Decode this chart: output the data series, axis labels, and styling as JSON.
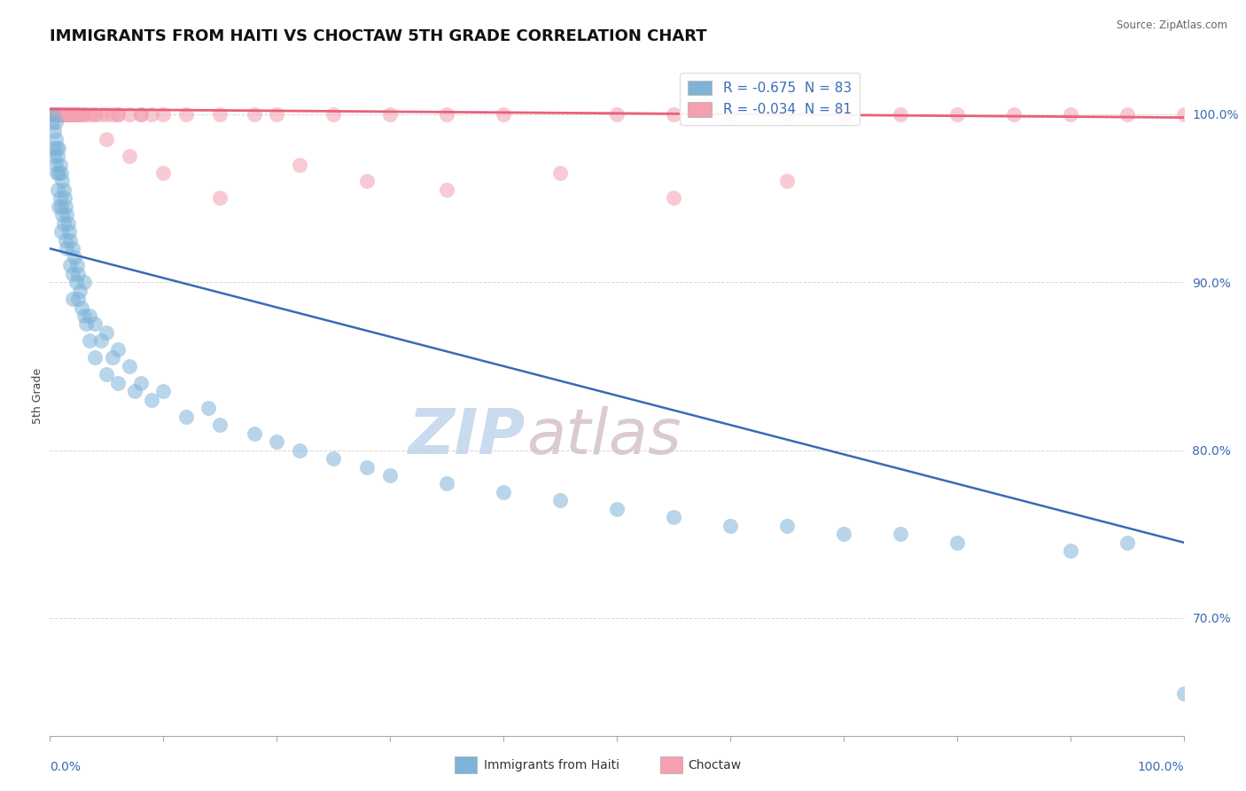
{
  "title": "IMMIGRANTS FROM HAITI VS CHOCTAW 5TH GRADE CORRELATION CHART",
  "source_text": "Source: ZipAtlas.com",
  "ylabel": "5th Grade",
  "x_label_bottom_left": "0.0%",
  "x_label_bottom_right": "100.0%",
  "legend_choctaw_label": "Choctaw",
  "legend_haiti_label": "Immigrants from Haiti",
  "r_haiti": -0.675,
  "n_haiti": 83,
  "r_choctaw": -0.034,
  "n_choctaw": 81,
  "xlim": [
    0.0,
    100.0
  ],
  "ylim": [
    63.0,
    103.5
  ],
  "y_ticks": [
    70.0,
    80.0,
    90.0,
    100.0
  ],
  "y_tick_labels": [
    "70.0%",
    "80.0%",
    "90.0%",
    "100.0%"
  ],
  "blue_color": "#7EB3D8",
  "pink_color": "#F4A0B0",
  "blue_line_color": "#3A6BB5",
  "pink_line_color": "#E8607A",
  "watermark_zip": "ZIP",
  "watermark_atlas": "atlas",
  "watermark_color_zip": "#C5D8EE",
  "watermark_color_atlas": "#D8C5CE",
  "background_color": "#FFFFFF",
  "title_fontsize": 13,
  "axis_label_fontsize": 9,
  "tick_label_fontsize": 10,
  "haiti_line_x0": 0,
  "haiti_line_y0": 92.0,
  "haiti_line_x1": 100,
  "haiti_line_y1": 74.5,
  "choctaw_line_x0": 0,
  "choctaw_line_y0": 100.3,
  "choctaw_line_x1": 100,
  "choctaw_line_y1": 99.8,
  "haiti_scatter_x": [
    0.2,
    0.3,
    0.3,
    0.4,
    0.4,
    0.5,
    0.5,
    0.5,
    0.6,
    0.6,
    0.7,
    0.7,
    0.8,
    0.8,
    0.8,
    0.9,
    0.9,
    1.0,
    1.0,
    1.0,
    1.1,
    1.1,
    1.2,
    1.2,
    1.3,
    1.4,
    1.4,
    1.5,
    1.5,
    1.6,
    1.7,
    1.8,
    1.8,
    2.0,
    2.0,
    2.0,
    2.2,
    2.3,
    2.4,
    2.5,
    2.5,
    2.6,
    2.8,
    3.0,
    3.0,
    3.2,
    3.5,
    3.5,
    4.0,
    4.0,
    4.5,
    5.0,
    5.0,
    5.5,
    6.0,
    6.0,
    7.0,
    7.5,
    8.0,
    9.0,
    10.0,
    12.0,
    14.0,
    15.0,
    18.0,
    20.0,
    22.0,
    25.0,
    28.0,
    30.0,
    35.0,
    40.0,
    45.0,
    50.0,
    55.0,
    60.0,
    65.0,
    70.0,
    75.0,
    80.0,
    90.0,
    95.0,
    100.0
  ],
  "haiti_scatter_y": [
    99.5,
    100.0,
    98.0,
    99.0,
    97.5,
    98.5,
    97.0,
    99.5,
    98.0,
    96.5,
    97.5,
    95.5,
    98.0,
    96.5,
    94.5,
    97.0,
    95.0,
    96.5,
    94.5,
    93.0,
    96.0,
    94.0,
    95.5,
    93.5,
    95.0,
    94.5,
    92.5,
    94.0,
    92.0,
    93.5,
    93.0,
    92.5,
    91.0,
    92.0,
    90.5,
    89.0,
    91.5,
    90.0,
    91.0,
    90.5,
    89.0,
    89.5,
    88.5,
    90.0,
    88.0,
    87.5,
    88.0,
    86.5,
    87.5,
    85.5,
    86.5,
    87.0,
    84.5,
    85.5,
    86.0,
    84.0,
    85.0,
    83.5,
    84.0,
    83.0,
    83.5,
    82.0,
    82.5,
    81.5,
    81.0,
    80.5,
    80.0,
    79.5,
    79.0,
    78.5,
    78.0,
    77.5,
    77.0,
    76.5,
    76.0,
    75.5,
    75.5,
    75.0,
    75.0,
    74.5,
    74.0,
    74.5,
    65.5
  ],
  "choctaw_scatter_x": [
    0.1,
    0.2,
    0.3,
    0.3,
    0.4,
    0.4,
    0.5,
    0.5,
    0.6,
    0.6,
    0.7,
    0.7,
    0.8,
    0.8,
    0.9,
    0.9,
    1.0,
    1.0,
    1.0,
    1.1,
    1.2,
    1.2,
    1.3,
    1.4,
    1.5,
    1.5,
    1.6,
    1.7,
    1.8,
    2.0,
    2.0,
    2.1,
    2.2,
    2.3,
    2.5,
    2.5,
    2.8,
    3.0,
    3.0,
    3.5,
    4.0,
    4.0,
    4.5,
    5.0,
    5.5,
    6.0,
    6.0,
    7.0,
    8.0,
    8.0,
    9.0,
    10.0,
    12.0,
    15.0,
    18.0,
    20.0,
    25.0,
    30.0,
    35.0,
    40.0,
    50.0,
    55.0,
    60.0,
    65.0,
    70.0,
    75.0,
    80.0,
    85.0,
    90.0,
    95.0,
    100.0,
    5.0,
    7.0,
    10.0,
    15.0,
    22.0,
    28.0,
    35.0,
    45.0,
    55.0,
    65.0
  ],
  "choctaw_scatter_y": [
    100.0,
    100.0,
    100.0,
    100.0,
    100.0,
    100.0,
    100.0,
    100.0,
    100.0,
    100.0,
    100.0,
    100.0,
    100.0,
    100.0,
    100.0,
    100.0,
    100.0,
    100.0,
    100.0,
    100.0,
    100.0,
    100.0,
    100.0,
    100.0,
    100.0,
    100.0,
    100.0,
    100.0,
    100.0,
    100.0,
    100.0,
    100.0,
    100.0,
    100.0,
    100.0,
    100.0,
    100.0,
    100.0,
    100.0,
    100.0,
    100.0,
    100.0,
    100.0,
    100.0,
    100.0,
    100.0,
    100.0,
    100.0,
    100.0,
    100.0,
    100.0,
    100.0,
    100.0,
    100.0,
    100.0,
    100.0,
    100.0,
    100.0,
    100.0,
    100.0,
    100.0,
    100.0,
    100.0,
    100.0,
    100.0,
    100.0,
    100.0,
    100.0,
    100.0,
    100.0,
    100.0,
    98.5,
    97.5,
    96.5,
    95.0,
    97.0,
    96.0,
    95.5,
    96.5,
    95.0,
    96.0
  ]
}
